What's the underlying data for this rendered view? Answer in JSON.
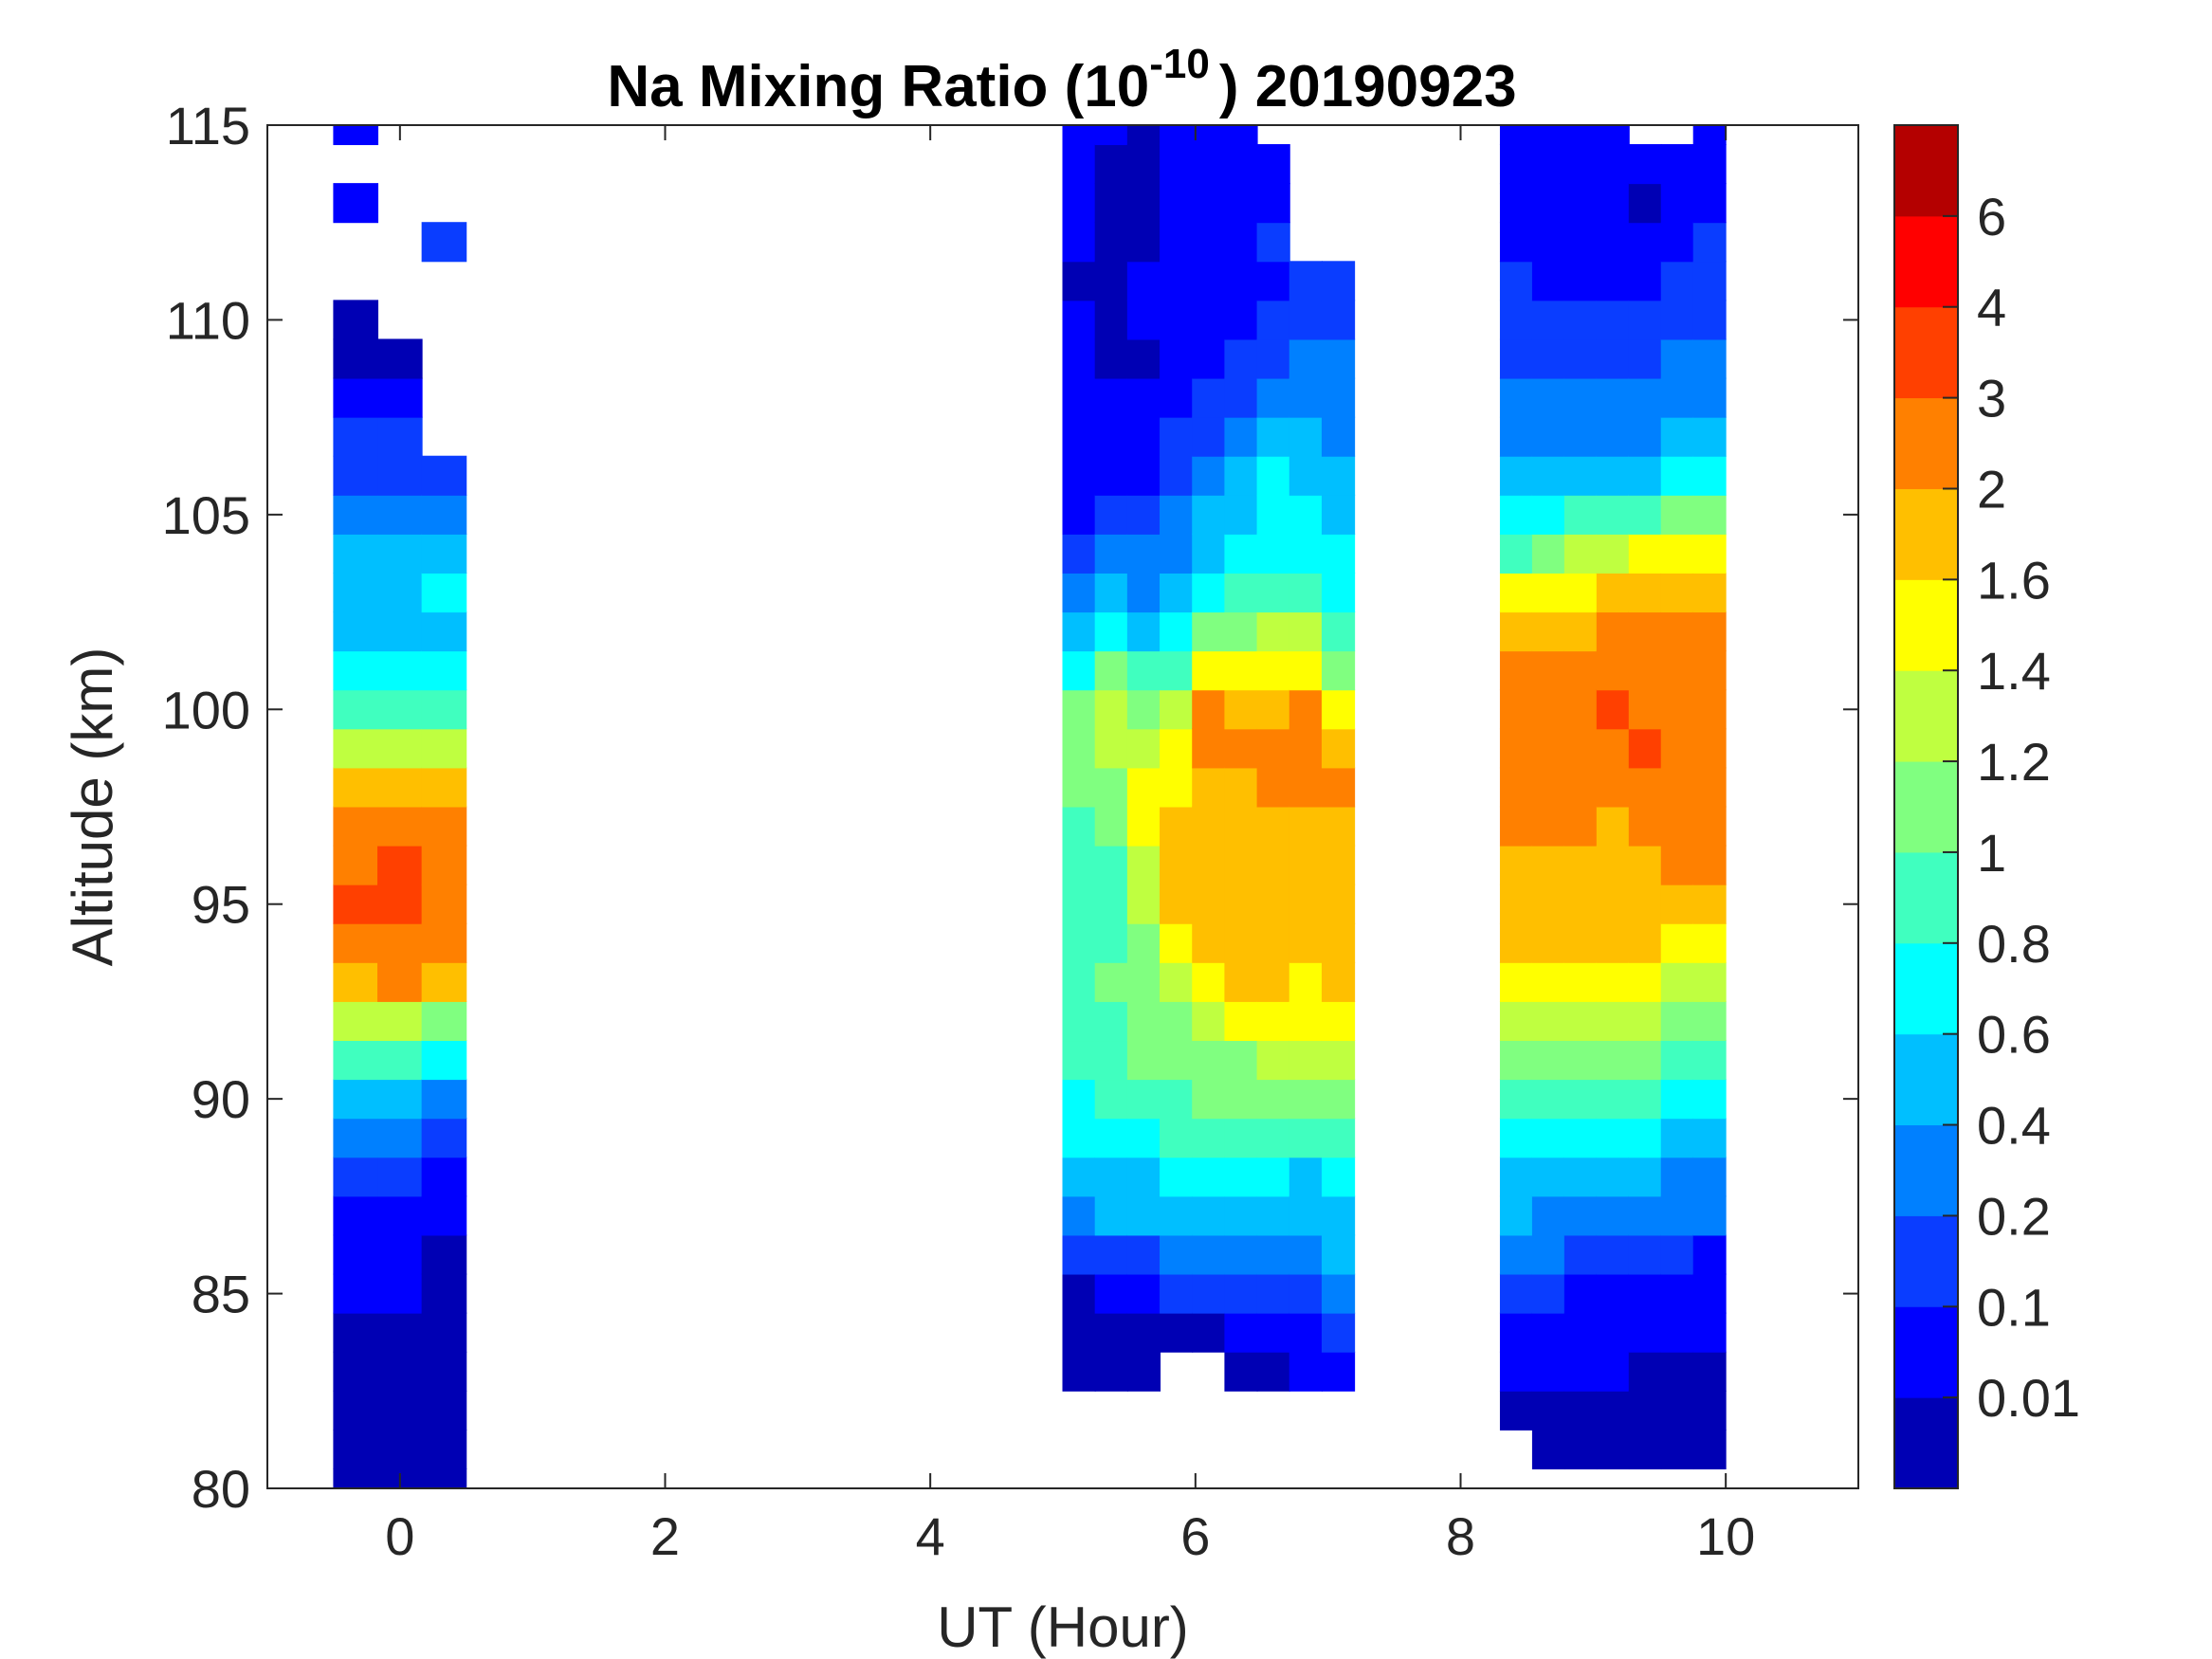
{
  "chart_data": {
    "type": "heatmap",
    "subtype": "filled-contour",
    "title": {
      "main": "Na Mixing Ratio (10",
      "superscript": "-10",
      "suffix": ") 20190923"
    },
    "xlabel": "UT (Hour)",
    "ylabel": "Altitude (km)",
    "xlim": [
      -1,
      11
    ],
    "ylim": [
      80,
      115
    ],
    "xticks": [
      "0",
      "2",
      "4",
      "6",
      "8",
      "10"
    ],
    "yticks": [
      "80",
      "85",
      "90",
      "95",
      "100",
      "105",
      "110",
      "115"
    ],
    "altitudes_km_start": 80,
    "altitude_step_km": 1,
    "colorbar": {
      "boundaries": [
        "0.01",
        "0.1",
        "0.2",
        "0.4",
        "0.6",
        "0.8",
        "1",
        "1.2",
        "1.4",
        "1.6",
        "2",
        "3",
        "4",
        "6"
      ],
      "colors": [
        "#0000B4",
        "#0000FF",
        "#0A3DFF",
        "#0080FF",
        "#00BFFF",
        "#00FFFF",
        "#40FFBF",
        "#80FF80",
        "#BFFF40",
        "#FFFF00",
        "#FFBF00",
        "#FF8000",
        "#FF4000",
        "#FF0000",
        "#B40000"
      ]
    },
    "segments": [
      {
        "ut_range": [
          -0.5,
          0.5
        ],
        "level_index_columns": [
          [
            0,
            0,
            0,
            0,
            0,
            1,
            1,
            1,
            2,
            3,
            4,
            6,
            8,
            10,
            11,
            12,
            11,
            11,
            10,
            8,
            6,
            5,
            4,
            4,
            4,
            3,
            2,
            2,
            1,
            0,
            0,
            null,
            null,
            1,
            null,
            1
          ],
          [
            0,
            0,
            0,
            0,
            0,
            1,
            1,
            1,
            2,
            3,
            4,
            6,
            8,
            11,
            11,
            12,
            12,
            11,
            10,
            8,
            6,
            5,
            4,
            4,
            4,
            3,
            2,
            2,
            1,
            0,
            null,
            null,
            null,
            null,
            null,
            null
          ],
          [
            0,
            0,
            0,
            0,
            0,
            0,
            0,
            1,
            1,
            2,
            3,
            5,
            7,
            10,
            11,
            11,
            11,
            11,
            10,
            8,
            6,
            5,
            4,
            5,
            4,
            3,
            2,
            null,
            null,
            null,
            null,
            null,
            2,
            null,
            null,
            null
          ]
        ]
      },
      {
        "ut_range": [
          5.0,
          7.2
        ],
        "level_index_columns": [
          [
            null,
            null,
            null,
            0,
            0,
            0,
            2,
            3,
            4,
            5,
            5,
            6,
            6,
            6,
            6,
            6,
            6,
            6,
            7,
            7,
            7,
            5,
            4,
            3,
            2,
            1,
            1,
            1,
            1,
            1,
            1,
            0,
            1,
            1,
            1,
            1
          ],
          [
            null,
            null,
            null,
            0,
            0,
            1,
            2,
            4,
            4,
            5,
            6,
            6,
            6,
            7,
            6,
            6,
            6,
            7,
            7,
            8,
            8,
            7,
            5,
            4,
            3,
            2,
            1,
            1,
            1,
            0,
            0,
            0,
            0,
            0,
            0,
            1
          ],
          [
            null,
            null,
            null,
            0,
            0,
            1,
            2,
            4,
            4,
            5,
            6,
            7,
            7,
            7,
            7,
            8,
            8,
            9,
            9,
            8,
            7,
            6,
            4,
            3,
            3,
            2,
            1,
            1,
            1,
            0,
            1,
            1,
            0,
            0,
            0,
            0
          ],
          [
            null,
            null,
            null,
            null,
            0,
            2,
            3,
            4,
            5,
            6,
            6,
            7,
            7,
            8,
            9,
            10,
            10,
            10,
            9,
            9,
            8,
            6,
            5,
            4,
            3,
            3,
            2,
            2,
            1,
            1,
            1,
            1,
            1,
            1,
            1,
            1
          ],
          [
            null,
            null,
            null,
            null,
            0,
            2,
            3,
            4,
            5,
            6,
            7,
            7,
            8,
            9,
            10,
            10,
            10,
            10,
            10,
            11,
            11,
            9,
            7,
            5,
            4,
            4,
            3,
            2,
            2,
            1,
            1,
            1,
            1,
            1,
            1,
            1
          ],
          [
            null,
            null,
            null,
            0,
            1,
            2,
            3,
            4,
            5,
            6,
            7,
            7,
            9,
            10,
            10,
            10,
            10,
            10,
            10,
            11,
            10,
            9,
            7,
            6,
            5,
            4,
            4,
            3,
            2,
            2,
            1,
            1,
            1,
            1,
            1,
            1
          ],
          [
            null,
            null,
            null,
            0,
            1,
            2,
            3,
            4,
            5,
            6,
            7,
            8,
            9,
            10,
            10,
            10,
            10,
            10,
            11,
            11,
            10,
            9,
            8,
            6,
            5,
            5,
            5,
            4,
            3,
            2,
            2,
            1,
            2,
            1,
            1,
            null
          ],
          [
            null,
            null,
            null,
            1,
            1,
            2,
            3,
            4,
            4,
            6,
            7,
            8,
            9,
            9,
            10,
            10,
            10,
            10,
            11,
            11,
            11,
            9,
            8,
            6,
            5,
            5,
            4,
            4,
            3,
            3,
            2,
            2,
            null,
            null,
            null,
            null
          ],
          [
            null,
            null,
            null,
            1,
            2,
            3,
            4,
            4,
            5,
            6,
            7,
            8,
            9,
            10,
            10,
            10,
            10,
            10,
            11,
            10,
            9,
            7,
            6,
            5,
            5,
            4,
            4,
            3,
            3,
            3,
            2,
            2,
            null,
            null,
            null,
            null
          ]
        ]
      },
      {
        "ut_range": [
          8.3,
          10.0
        ],
        "level_index_columns": [
          [
            null,
            null,
            0,
            1,
            1,
            2,
            3,
            4,
            4,
            5,
            6,
            7,
            8,
            9,
            10,
            10,
            10,
            11,
            11,
            11,
            11,
            11,
            10,
            9,
            6,
            5,
            4,
            3,
            3,
            2,
            2,
            2,
            1,
            1,
            1,
            1
          ],
          [
            null,
            0,
            0,
            1,
            1,
            2,
            3,
            3,
            4,
            5,
            6,
            7,
            8,
            9,
            10,
            10,
            10,
            11,
            11,
            11,
            11,
            11,
            10,
            9,
            7,
            5,
            4,
            3,
            3,
            2,
            2,
            1,
            1,
            1,
            1,
            1
          ],
          [
            null,
            0,
            0,
            1,
            1,
            1,
            2,
            3,
            4,
            5,
            6,
            7,
            8,
            9,
            10,
            10,
            10,
            11,
            11,
            11,
            11,
            11,
            10,
            9,
            8,
            6,
            4,
            3,
            3,
            2,
            2,
            1,
            1,
            1,
            1,
            1
          ],
          [
            null,
            0,
            0,
            1,
            1,
            1,
            2,
            3,
            4,
            5,
            6,
            7,
            8,
            9,
            10,
            10,
            10,
            10,
            11,
            11,
            12,
            11,
            11,
            10,
            8,
            6,
            4,
            3,
            3,
            2,
            2,
            1,
            1,
            1,
            1,
            1
          ],
          [
            null,
            0,
            0,
            0,
            1,
            1,
            2,
            3,
            4,
            5,
            6,
            7,
            8,
            9,
            10,
            10,
            10,
            11,
            11,
            12,
            11,
            11,
            11,
            10,
            9,
            6,
            4,
            3,
            3,
            2,
            2,
            1,
            1,
            0,
            1,
            null
          ],
          [
            null,
            0,
            0,
            0,
            1,
            1,
            2,
            3,
            3,
            4,
            5,
            6,
            7,
            8,
            9,
            10,
            11,
            11,
            11,
            11,
            11,
            11,
            11,
            10,
            9,
            7,
            5,
            4,
            3,
            3,
            2,
            2,
            1,
            1,
            1,
            null
          ],
          [
            null,
            0,
            0,
            0,
            1,
            1,
            1,
            3,
            3,
            4,
            5,
            6,
            7,
            8,
            9,
            10,
            11,
            11,
            11,
            11,
            11,
            11,
            11,
            10,
            9,
            7,
            5,
            4,
            3,
            3,
            2,
            2,
            2,
            1,
            1,
            1
          ]
        ]
      }
    ]
  }
}
